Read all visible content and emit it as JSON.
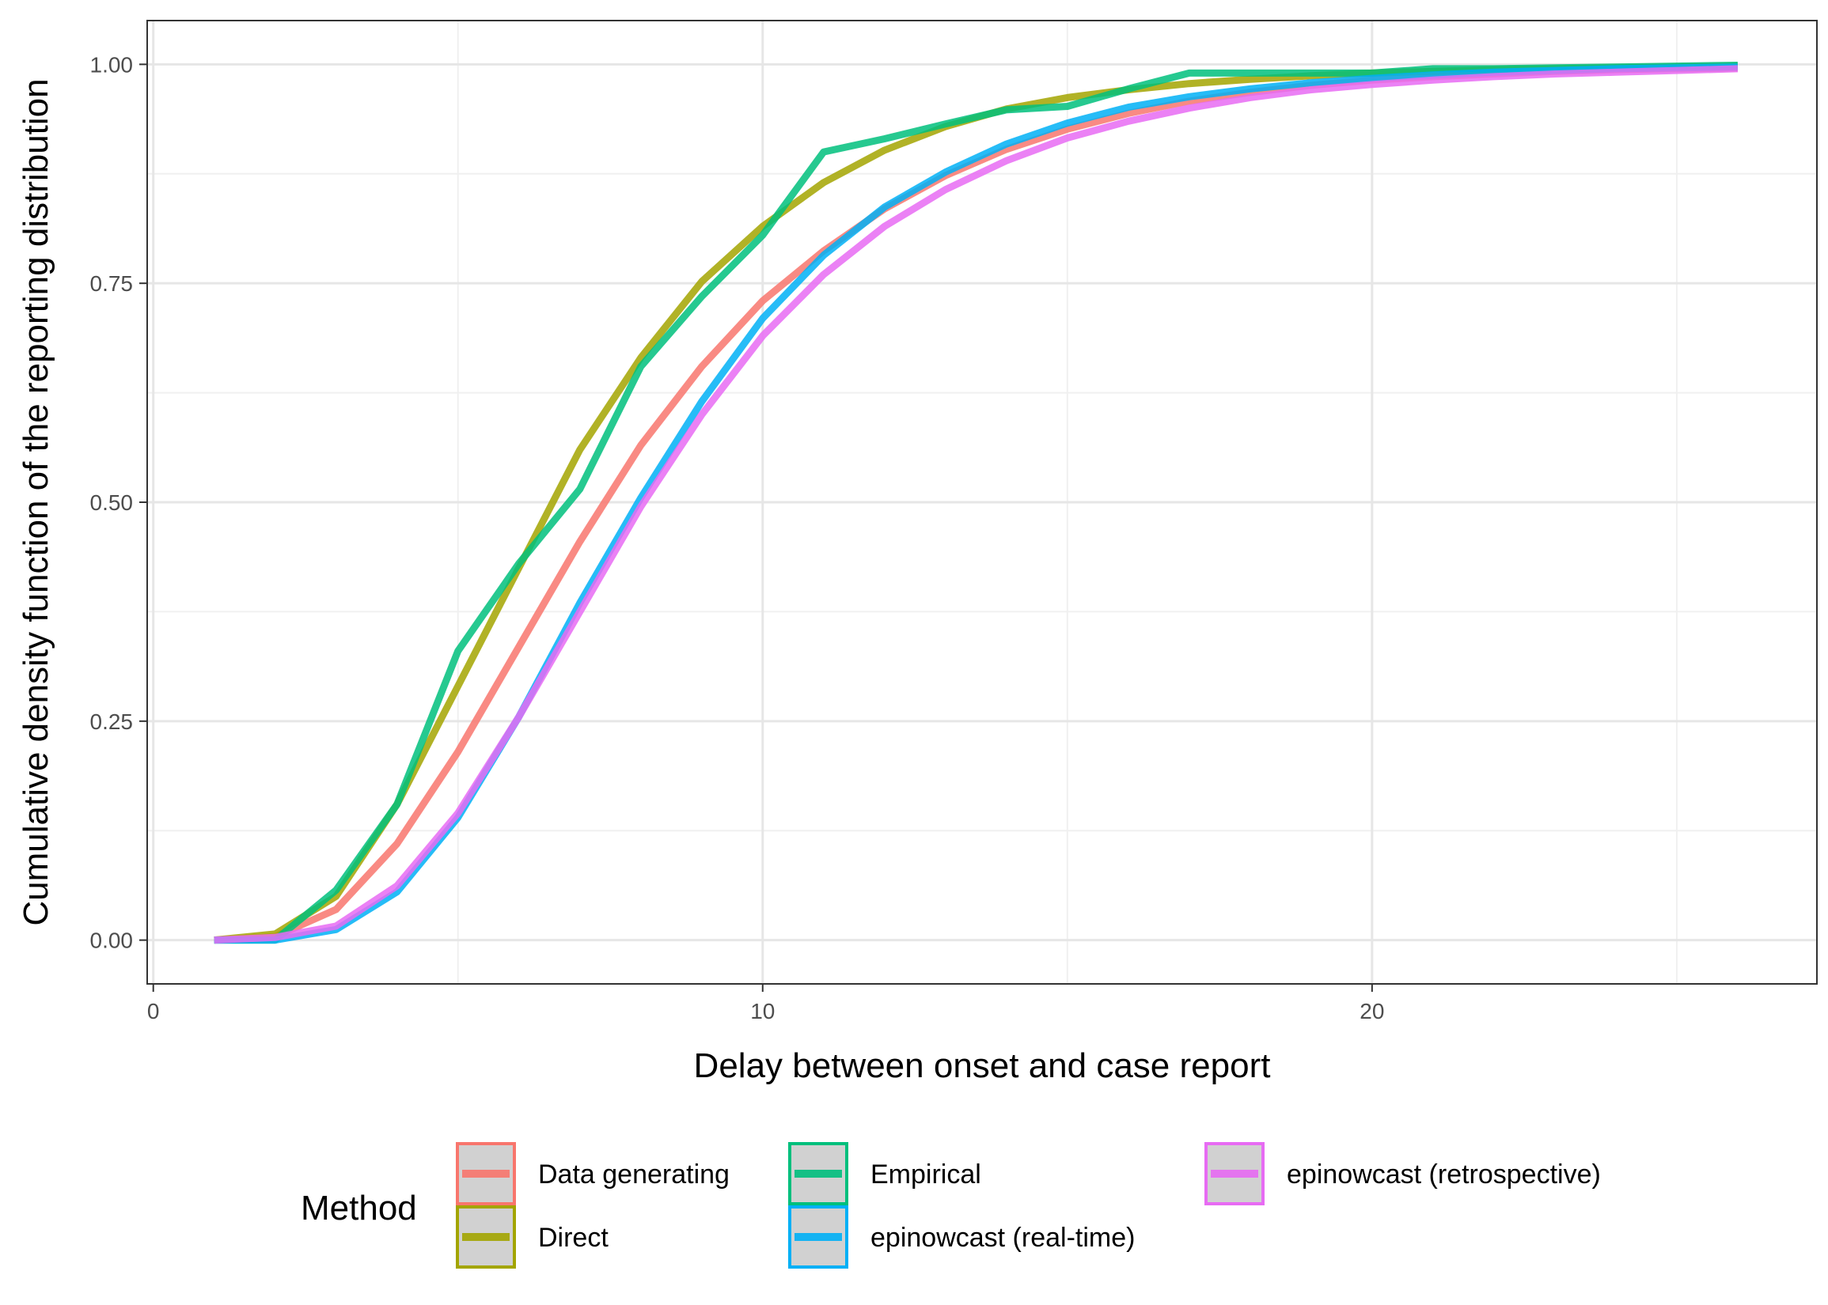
{
  "chart_data": {
    "type": "line",
    "xlabel": "Delay between onset and case report",
    "ylabel": "Cumulative density function of the reporting distribution",
    "xlim": [
      -0.1,
      27.3
    ],
    "ylim": [
      -0.05,
      1.05
    ],
    "x_ticks": [
      0,
      10,
      20
    ],
    "x_tick_labels": [
      "0",
      "10",
      "20"
    ],
    "y_ticks": [
      0,
      0.25,
      0.5,
      0.75,
      1.0
    ],
    "y_tick_labels": [
      "0.00",
      "0.25",
      "0.50",
      "0.75",
      "1.00"
    ],
    "grid": true,
    "legend": {
      "title": "Method",
      "position": "bottom"
    },
    "x": [
      1,
      2,
      3,
      4,
      5,
      6,
      7,
      8,
      9,
      10,
      11,
      12,
      13,
      14,
      15,
      16,
      17,
      18,
      19,
      20,
      21,
      22,
      23,
      24,
      25,
      26
    ],
    "series": [
      {
        "name": "Data generating",
        "color": "#F8766D",
        "values": [
          0.0,
          0.004,
          0.035,
          0.11,
          0.215,
          0.335,
          0.455,
          0.565,
          0.655,
          0.73,
          0.787,
          0.835,
          0.873,
          0.903,
          0.926,
          0.944,
          0.958,
          0.968,
          0.976,
          0.982,
          0.986,
          0.989,
          0.992,
          0.994,
          0.995,
          0.996
        ]
      },
      {
        "name": "Direct",
        "color": "#A3A500",
        "values": [
          0.0,
          0.007,
          0.05,
          0.155,
          0.29,
          0.425,
          0.56,
          0.665,
          0.752,
          0.815,
          0.865,
          0.902,
          0.929,
          0.949,
          0.962,
          0.971,
          0.978,
          0.983,
          0.987,
          0.99,
          0.992,
          0.994,
          0.995,
          0.996,
          0.997,
          0.998
        ]
      },
      {
        "name": "Empirical",
        "color": "#00BF7D",
        "values": [
          0.0,
          0.0,
          0.057,
          0.155,
          0.33,
          0.43,
          0.515,
          0.655,
          0.735,
          0.805,
          0.9,
          0.915,
          0.932,
          0.948,
          0.952,
          0.972,
          0.99,
          0.99,
          0.99,
          0.99,
          0.995,
          0.995,
          0.996,
          0.997,
          0.998,
          0.999
        ]
      },
      {
        "name": "epinowcast (real-time)",
        "color": "#00B0F6",
        "values": [
          0.0,
          0.0,
          0.012,
          0.055,
          0.14,
          0.255,
          0.385,
          0.505,
          0.615,
          0.71,
          0.782,
          0.837,
          0.877,
          0.909,
          0.933,
          0.951,
          0.963,
          0.972,
          0.979,
          0.984,
          0.988,
          0.991,
          0.993,
          0.995,
          0.996,
          0.997
        ]
      },
      {
        "name": "epinowcast (retrospective)",
        "color": "#E76BF3",
        "values": [
          0.0,
          0.003,
          0.016,
          0.062,
          0.145,
          0.255,
          0.375,
          0.495,
          0.6,
          0.69,
          0.76,
          0.815,
          0.857,
          0.89,
          0.916,
          0.935,
          0.95,
          0.962,
          0.971,
          0.977,
          0.982,
          0.986,
          0.989,
          0.991,
          0.993,
          0.995
        ]
      }
    ]
  }
}
